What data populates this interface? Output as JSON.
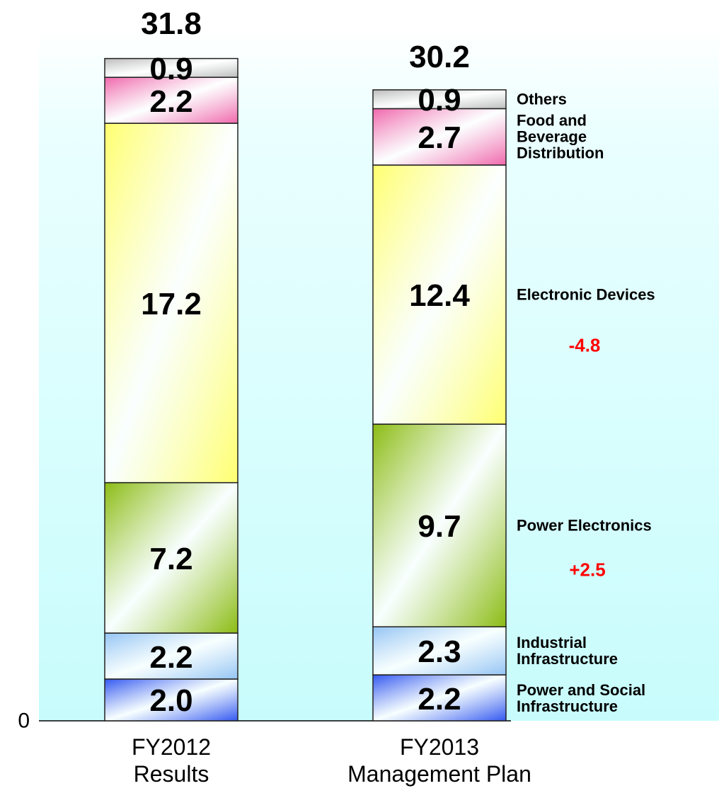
{
  "chart_data": {
    "type": "bar",
    "stacked": true,
    "categories": [
      "FY2012 Results",
      "FY2013 Management Plan"
    ],
    "series": [
      {
        "name": "Power and Social Infrastructure",
        "color": "#3358f0",
        "values": [
          2.0,
          2.2
        ],
        "value_labels": [
          "2.0",
          "2.2"
        ]
      },
      {
        "name": "Industrial Infrastructure",
        "color": "#94c4f4",
        "values": [
          2.2,
          2.3
        ]
      },
      {
        "name": "Power Electronics",
        "color": "#8cbc14",
        "values": [
          7.2,
          9.7
        ]
      },
      {
        "name": "Electronic Devices",
        "color": "#ffff70",
        "values": [
          17.2,
          12.4
        ]
      },
      {
        "name": "Food and Beverage Distribution",
        "color": "#f068ac",
        "values": [
          2.2,
          2.7
        ]
      },
      {
        "name": "Others",
        "color": "#bcbcbc",
        "values": [
          0.9,
          0.9
        ]
      }
    ],
    "totals": [
      31.8,
      30.2
    ],
    "annotations": [
      {
        "text": "-4.8",
        "color": "#ff0000"
      },
      {
        "text": "+2.5",
        "color": "#ff0000"
      }
    ],
    "ylim": [
      0,
      34.5
    ],
    "yticks": [
      0
    ]
  }
}
